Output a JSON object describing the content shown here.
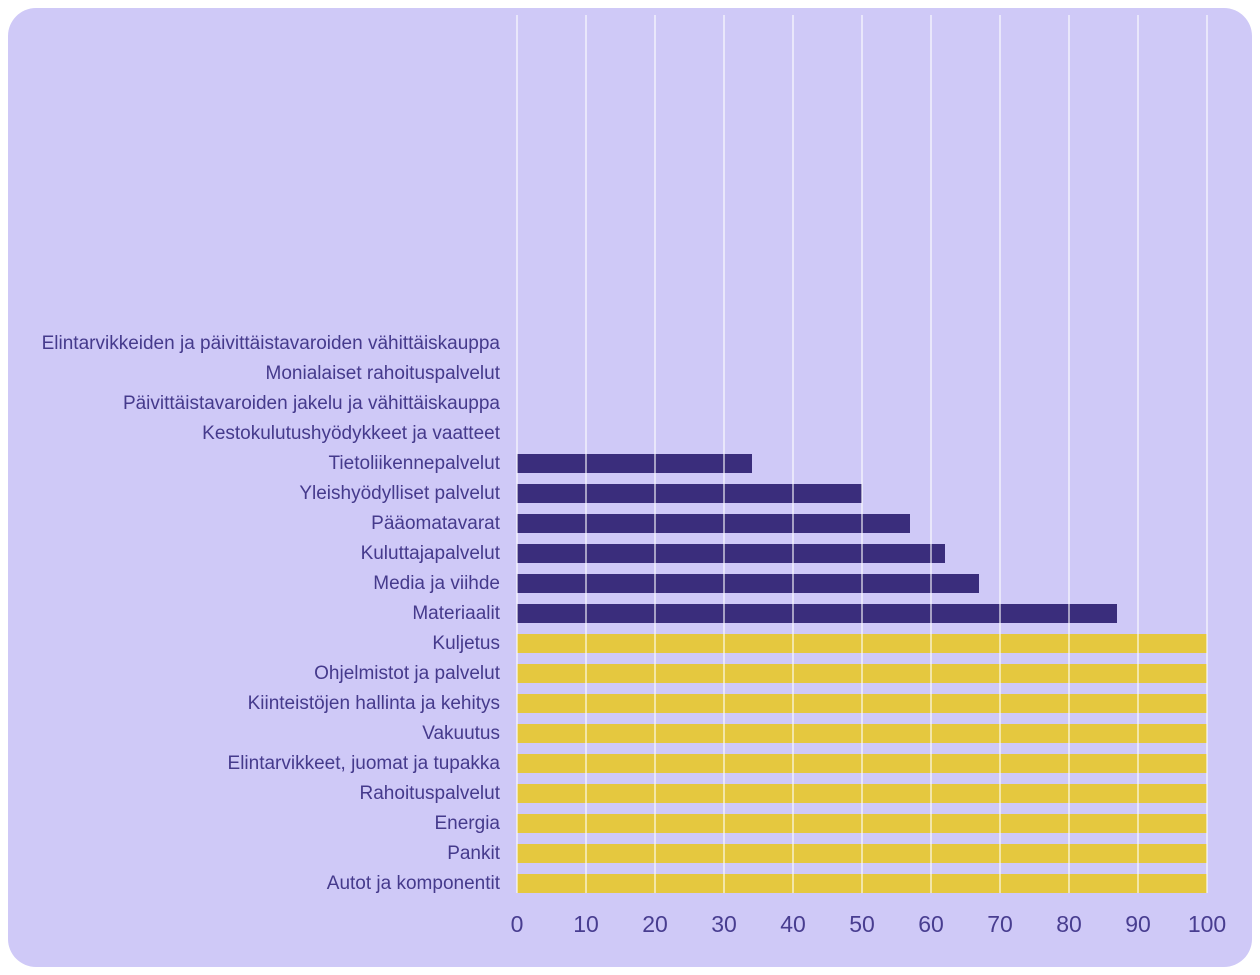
{
  "chart_data": {
    "type": "bar",
    "orientation": "horizontal",
    "title": "",
    "xlabel": "",
    "ylabel": "",
    "xlim": [
      0,
      100
    ],
    "xticks": [
      0,
      10,
      20,
      30,
      40,
      50,
      60,
      70,
      80,
      90,
      100
    ],
    "grid": "vertical",
    "legend": "none",
    "categories": [
      "Elintarvikkeiden ja päivittäistavaroiden vähittäiskauppa",
      "Monialaiset rahoituspalvelut",
      "Päivittäistavaroiden jakelu ja vähittäiskauppa",
      "Kestokulutushyödykkeet ja vaatteet",
      "Tietoliikennepalvelut",
      "Yleishyödylliset palvelut",
      "Pääomatavarat",
      "Kuluttajapalvelut",
      "Media ja viihde",
      "Materiaalit",
      "Kuljetus",
      "Ohjelmistot ja palvelut",
      "Kiinteistöjen hallinta ja kehitys",
      "Vakuutus",
      "Elintarvikkeet, juomat ja tupakka",
      "Rahoituspalvelut",
      "Energia",
      "Pankit",
      "Autot ja komponentit"
    ],
    "values": [
      0,
      0,
      0,
      0,
      34,
      50,
      57,
      62,
      67,
      87,
      100,
      100,
      100,
      100,
      100,
      100,
      100,
      100,
      100
    ],
    "bar_color_groups": [
      "none",
      "none",
      "none",
      "none",
      "purple",
      "purple",
      "purple",
      "purple",
      "purple",
      "purple",
      "yellow",
      "yellow",
      "yellow",
      "yellow",
      "yellow",
      "yellow",
      "yellow",
      "yellow",
      "yellow"
    ]
  },
  "colors": {
    "card_background": "#cfc9f7",
    "bar_purple": "#3a2d7c",
    "bar_yellow": "#e5c83f",
    "gridline": "#e6e2fb",
    "text": "#453a8c"
  }
}
